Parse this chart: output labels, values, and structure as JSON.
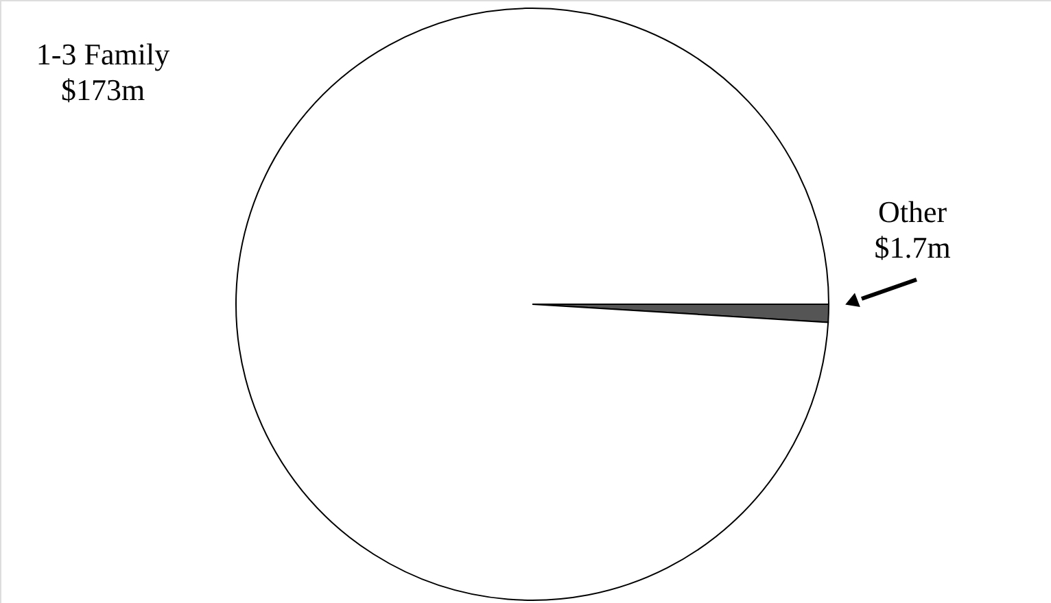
{
  "chart_data": {
    "type": "pie",
    "categories": [
      "1-3 Family",
      "Other"
    ],
    "values": [
      173,
      1.7
    ],
    "value_labels": [
      "$173m",
      "$1.7m"
    ],
    "colors": [
      "#ffffff",
      "#555555"
    ]
  }
}
